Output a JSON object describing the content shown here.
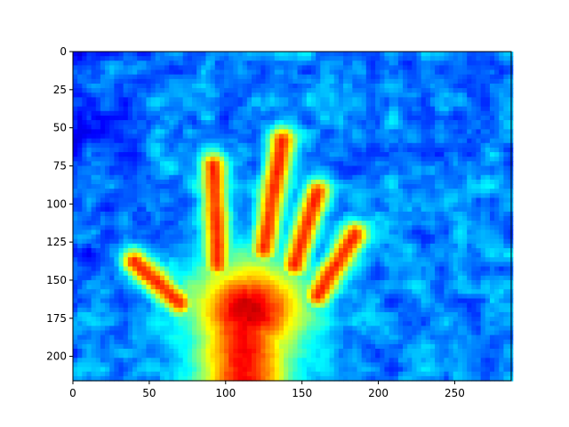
{
  "chart_data": {
    "type": "heatmap",
    "title": "",
    "xlabel": "",
    "ylabel": "",
    "image_width": 287,
    "image_height": 216,
    "xlim": [
      0,
      287
    ],
    "ylim": [
      216,
      0
    ],
    "y_axis_inverted": true,
    "grid": false,
    "legend": "none",
    "colormap": "jet",
    "description": "Thermal-style heatmap of a hand: hot (red/orange) palm and five fingers on a cool blue/cyan blotchy background.",
    "x_ticks": [
      {
        "value": 0,
        "label": "0"
      },
      {
        "value": 50,
        "label": "50"
      },
      {
        "value": 100,
        "label": "100"
      },
      {
        "value": 150,
        "label": "150"
      },
      {
        "value": 200,
        "label": "200"
      },
      {
        "value": 250,
        "label": "250"
      }
    ],
    "y_ticks": [
      {
        "value": 0,
        "label": "0"
      },
      {
        "value": 25,
        "label": "25"
      },
      {
        "value": 50,
        "label": "50"
      },
      {
        "value": 75,
        "label": "75"
      },
      {
        "value": 100,
        "label": "100"
      },
      {
        "value": 125,
        "label": "125"
      },
      {
        "value": 150,
        "label": "150"
      },
      {
        "value": 175,
        "label": "175"
      },
      {
        "value": 200,
        "label": "200"
      }
    ],
    "hand": {
      "palm_center": [
        115,
        170
      ],
      "fingers": [
        {
          "name": "thumb",
          "base": [
            70,
            165
          ],
          "tip": [
            40,
            138
          ]
        },
        {
          "name": "index",
          "base": [
            95,
            140
          ],
          "tip": [
            92,
            75
          ]
        },
        {
          "name": "middle",
          "base": [
            125,
            130
          ],
          "tip": [
            137,
            58
          ]
        },
        {
          "name": "ring",
          "base": [
            145,
            140
          ],
          "tip": [
            160,
            92
          ]
        },
        {
          "name": "pinky",
          "base": [
            160,
            160
          ],
          "tip": [
            185,
            120
          ]
        }
      ]
    },
    "colors": {
      "axes_frame": "#000000",
      "background": "#ffffff"
    }
  }
}
